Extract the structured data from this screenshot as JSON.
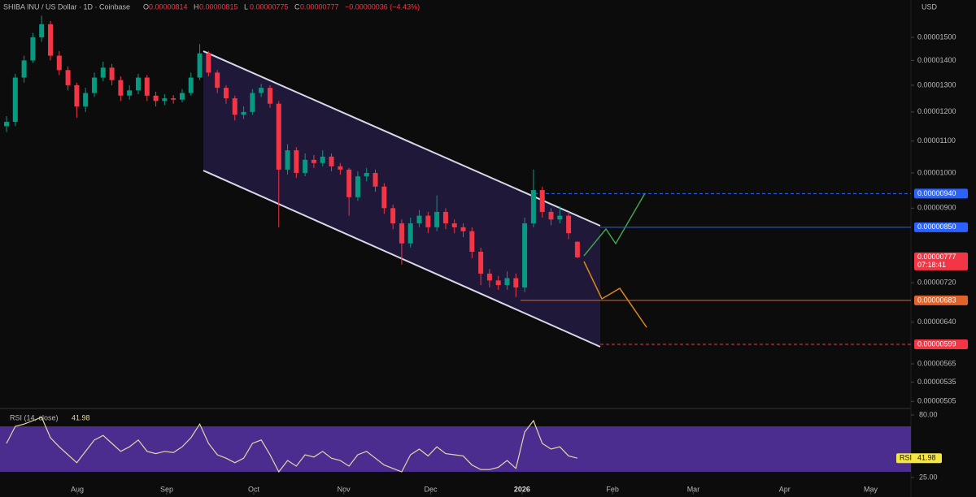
{
  "chart_data": {
    "type": "candlestick",
    "header": {
      "symbol": "SHIBA INU / US Dollar · 1D · Coinbase",
      "ohlc": [
        {
          "label": "O",
          "value": "0.00000814"
        },
        {
          "label": "H",
          "value": "0.00000815"
        },
        {
          "label": "L",
          "value": "0.00000775"
        },
        {
          "label": "C",
          "value": "0.00000777"
        }
      ],
      "change": "−0.00000036 (−4.43%)"
    },
    "currency": "USD",
    "log_scale": true,
    "up_color": "#089981",
    "down_color": "#f23645",
    "candles": [
      [
        1.15e-05,
        1.185e-05,
        1.13e-05,
        1.165e-05
      ],
      [
        1.165e-05,
        1.345e-05,
        1.15e-05,
        1.33e-05
      ],
      [
        1.33e-05,
        1.42e-05,
        1.31e-05,
        1.4e-05
      ],
      [
        1.4e-05,
        1.52e-05,
        1.39e-05,
        1.5e-05
      ],
      [
        1.5e-05,
        1.6e-05,
        1.48e-05,
        1.56e-05
      ],
      [
        1.56e-05,
        1.575e-05,
        1.4e-05,
        1.42e-05
      ],
      [
        1.42e-05,
        1.44e-05,
        1.34e-05,
        1.36e-05
      ],
      [
        1.36e-05,
        1.375e-05,
        1.28e-05,
        1.3e-05
      ],
      [
        1.3e-05,
        1.31e-05,
        1.18e-05,
        1.22e-05
      ],
      [
        1.22e-05,
        1.29e-05,
        1.2e-05,
        1.27e-05
      ],
      [
        1.27e-05,
        1.35e-05,
        1.255e-05,
        1.33e-05
      ],
      [
        1.33e-05,
        1.395e-05,
        1.315e-05,
        1.37e-05
      ],
      [
        1.37e-05,
        1.385e-05,
        1.3e-05,
        1.32e-05
      ],
      [
        1.32e-05,
        1.335e-05,
        1.24e-05,
        1.26e-05
      ],
      [
        1.26e-05,
        1.3e-05,
        1.245e-05,
        1.28e-05
      ],
      [
        1.28e-05,
        1.345e-05,
        1.265e-05,
        1.33e-05
      ],
      [
        1.33e-05,
        1.34e-05,
        1.24e-05,
        1.26e-05
      ],
      [
        1.26e-05,
        1.275e-05,
        1.22e-05,
        1.24e-05
      ],
      [
        1.24e-05,
        1.265e-05,
        1.225e-05,
        1.25e-05
      ],
      [
        1.25e-05,
        1.262e-05,
        1.23e-05,
        1.245e-05
      ],
      [
        1.245e-05,
        1.285e-05,
        1.235e-05,
        1.27e-05
      ],
      [
        1.27e-05,
        1.35e-05,
        1.26e-05,
        1.33e-05
      ],
      [
        1.33e-05,
        1.47e-05,
        1.32e-05,
        1.43e-05
      ],
      [
        1.43e-05,
        1.44e-05,
        1.335e-05,
        1.35e-05
      ],
      [
        1.35e-05,
        1.36e-05,
        1.27e-05,
        1.29e-05
      ],
      [
        1.29e-05,
        1.3e-05,
        1.23e-05,
        1.25e-05
      ],
      [
        1.25e-05,
        1.26e-05,
        1.17e-05,
        1.19e-05
      ],
      [
        1.19e-05,
        1.22e-05,
        1.175e-05,
        1.2e-05
      ],
      [
        1.2e-05,
        1.285e-05,
        1.19e-05,
        1.27e-05
      ],
      [
        1.27e-05,
        1.305e-05,
        1.255e-05,
        1.29e-05
      ],
      [
        1.29e-05,
        1.3e-05,
        1.215e-05,
        1.23e-05
      ],
      [
        1.23e-05,
        1.24e-05,
        8.5e-06,
        1.01e-05
      ],
      [
        1.01e-05,
        1.09e-05,
        9.95e-06,
        1.07e-05
      ],
      [
        1.07e-05,
        1.08e-05,
        9.85e-06,
        1e-05
      ],
      [
        1e-05,
        1.06e-05,
        9.9e-06,
        1.04e-05
      ],
      [
        1.04e-05,
        1.055e-05,
        1.015e-05,
        1.03e-05
      ],
      [
        1.03e-05,
        1.07e-05,
        1.02e-05,
        1.05e-05
      ],
      [
        1.05e-05,
        1.06e-05,
        1.005e-05,
        1.02e-05
      ],
      [
        1.02e-05,
        1.03e-05,
        9.95e-06,
        1.01e-05
      ],
      [
        1.01e-05,
        1.015e-05,
        8.8e-06,
        9.3e-06
      ],
      [
        9.3e-06,
        1.005e-05,
        9.2e-06,
        9.9e-06
      ],
      [
        9.9e-06,
        1.015e-05,
        9.75e-06,
        1e-05
      ],
      [
        1e-05,
        1.01e-05,
        9.45e-06,
        9.6e-06
      ],
      [
        9.6e-06,
        9.7e-06,
        8.85e-06,
        9e-06
      ],
      [
        9e-06,
        9.1e-06,
        8.45e-06,
        8.6e-06
      ],
      [
        8.6e-06,
        8.7e-06,
        7.6e-06,
        8.1e-06
      ],
      [
        8.1e-06,
        8.75e-06,
        8e-06,
        8.6e-06
      ],
      [
        8.6e-06,
        8.95e-06,
        8.5e-06,
        8.8e-06
      ],
      [
        8.8e-06,
        8.9e-06,
        8.35e-06,
        8.5e-06
      ],
      [
        8.5e-06,
        9.35e-06,
        8.4e-06,
        8.9e-06
      ],
      [
        8.9e-06,
        9e-06,
        8.45e-06,
        8.6e-06
      ],
      [
        8.6e-06,
        8.7e-06,
        8.35e-06,
        8.5e-06
      ],
      [
        8.5e-06,
        8.6e-06,
        8.25e-06,
        8.4e-06
      ],
      [
        8.4e-06,
        8.5e-06,
        7.75e-06,
        7.9e-06
      ],
      [
        7.9e-06,
        8e-06,
        7.15e-06,
        7.4e-06
      ],
      [
        7.4e-06,
        7.5e-06,
        7.1e-06,
        7.25e-06
      ],
      [
        7.25e-06,
        7.35e-06,
        7.05e-06,
        7.15e-06
      ],
      [
        7.15e-06,
        7.45e-06,
        7.05e-06,
        7.3e-06
      ],
      [
        7.3e-06,
        7.4e-06,
        6.9e-06,
        7.1e-06
      ],
      [
        7.1e-06,
        8.75e-06,
        7e-06,
        8.6e-06
      ],
      [
        8.6e-06,
        1.01e-05,
        8.5e-06,
        9.5e-06
      ],
      [
        9.5e-06,
        9.6e-06,
        8.75e-06,
        8.9e-06
      ],
      [
        8.9e-06,
        9e-06,
        8.55e-06,
        8.7e-06
      ],
      [
        8.7e-06,
        9.05e-06,
        8.6e-06,
        8.8e-06
      ],
      [
        8.8e-06,
        8.9e-06,
        8.2e-06,
        8.35e-06
      ],
      [
        8.14e-06,
        8.15e-06,
        7.75e-06,
        7.77e-06
      ]
    ],
    "xlim": [
      0,
      102.7
    ],
    "xticks": [
      {
        "value": 8.06,
        "label": "Aug"
      },
      {
        "value": 18.24,
        "label": "Sep"
      },
      {
        "value": 28.15,
        "label": "Oct"
      },
      {
        "value": 38.4,
        "label": "Nov"
      },
      {
        "value": 48.3,
        "label": "Dec"
      },
      {
        "value": 58.7,
        "label": "2026"
      },
      {
        "value": 69,
        "label": "Feb"
      },
      {
        "value": 78.2,
        "label": "Mar"
      },
      {
        "value": 88.6,
        "label": "Apr"
      },
      {
        "value": 98.4,
        "label": "May"
      }
    ],
    "ylim": [
      4.98e-06,
      1.645e-05
    ],
    "yticks": [
      {
        "value": 1.5e-05,
        "label": "0.00001500"
      },
      {
        "value": 1.4e-05,
        "label": "0.00001400"
      },
      {
        "value": 1.3e-05,
        "label": "0.00001300"
      },
      {
        "value": 1.2e-05,
        "label": "0.00001200"
      },
      {
        "value": 1.1e-05,
        "label": "0.00001100"
      },
      {
        "value": 1e-05,
        "label": "0.00001000"
      },
      {
        "value": 9e-06,
        "label": "0.00000900"
      },
      {
        "value": 7.2e-06,
        "label": "0.00000720"
      },
      {
        "value": 6.4e-06,
        "label": "0.00000640"
      },
      {
        "value": 5.65e-06,
        "label": "0.00000565"
      },
      {
        "value": 5.35e-06,
        "label": "0.00000535"
      },
      {
        "value": 5.05e-06,
        "label": "0.00000505"
      }
    ],
    "price_lines": [
      {
        "value": 9.4e-06,
        "label": "0.00000940",
        "color": "#2962ff",
        "style": "dashed"
      },
      {
        "value": 8.5e-06,
        "label": "0.00000850",
        "color": "#2962ff",
        "style": "solid"
      },
      {
        "value": 6.83e-06,
        "label": "0.00000683",
        "color": "#e0642a",
        "style": "solid"
      },
      {
        "value": 5.99e-06,
        "label": "0.00000599",
        "color": "#f23645",
        "style": "dashed"
      }
    ],
    "last_price": {
      "value": 7.77e-06,
      "label": "0.00000777",
      "countdown": "07:18:41",
      "color": "#f23645"
    },
    "rsi": {
      "title": "RSI (14, close)",
      "value_label": "41.98",
      "tag": "RSI",
      "color": "#e6d6a8",
      "band": [
        70,
        30
      ],
      "band_color": "#4b2d8f",
      "values": [
        55,
        70,
        72,
        75,
        78,
        60,
        52,
        45,
        38,
        48,
        58,
        62,
        55,
        48,
        52,
        58,
        48,
        46,
        48,
        47,
        52,
        60,
        72,
        55,
        45,
        42,
        38,
        42,
        55,
        58,
        45,
        30,
        40,
        35,
        45,
        43,
        48,
        42,
        40,
        35,
        45,
        48,
        42,
        36,
        33,
        30,
        45,
        50,
        44,
        52,
        46,
        45,
        44,
        36,
        32,
        32,
        34,
        40,
        33,
        65,
        75,
        55,
        50,
        52,
        44,
        41.98
      ],
      "ylim": [
        25,
        80
      ],
      "yticks": [
        {
          "value": 80,
          "label": "80.00"
        },
        {
          "value": 25,
          "label": "25.00"
        }
      ]
    }
  }
}
